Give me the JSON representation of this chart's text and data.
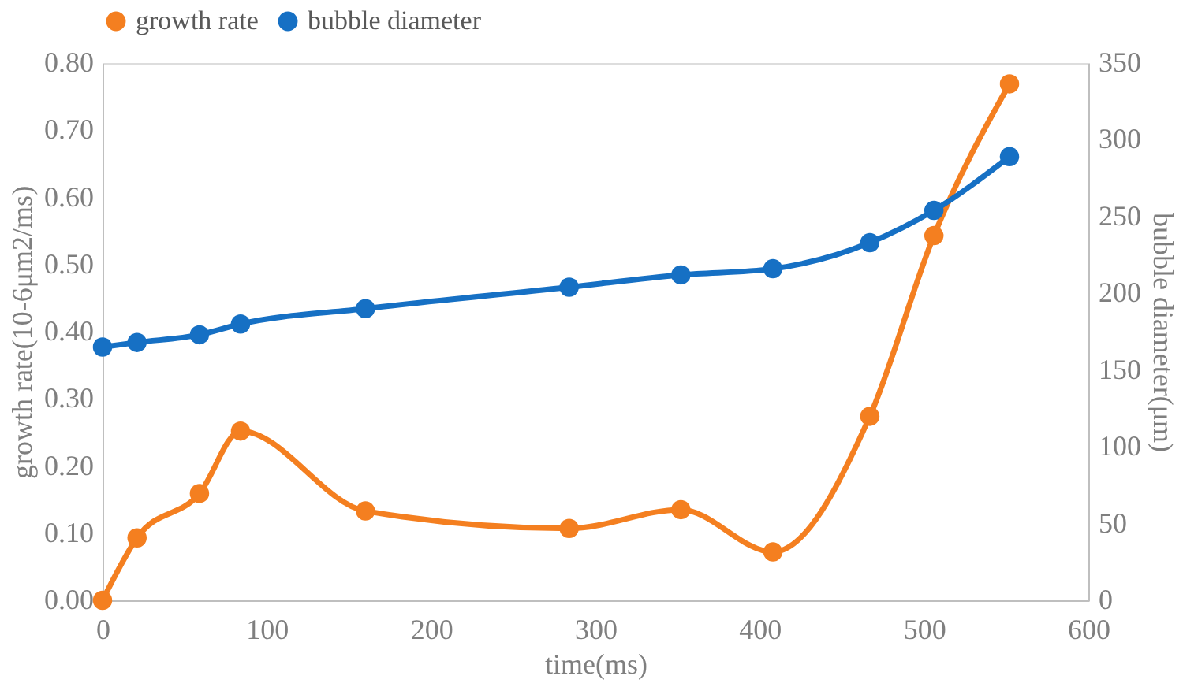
{
  "chart_data": {
    "type": "line",
    "xlabel": "time(ms)",
    "ylabel": "growth rate(10-6μm2/ms)",
    "y2label": "bubble diameter(μm)",
    "x": [
      0,
      21,
      59,
      84,
      160,
      284,
      352,
      408,
      467,
      506,
      552
    ],
    "series": [
      {
        "name": "growth rate",
        "color": "#f47f20",
        "values": [
          0.0,
          0.093,
          0.159,
          0.252,
          0.133,
          0.107,
          0.135,
          0.072,
          0.274,
          0.543,
          0.769
        ]
      },
      {
        "name": "bubble diameter",
        "color": "#1670c4",
        "axis": "y2",
        "values": [
          165,
          168,
          173,
          180,
          190,
          204,
          212,
          216,
          233,
          254,
          289
        ]
      }
    ],
    "xlim": [
      0,
      600
    ],
    "xticks": [
      0,
      100,
      200,
      300,
      400,
      500,
      600
    ],
    "ylim": [
      0,
      0.8
    ],
    "yticks": [
      {
        "value": 0,
        "label": "0.00"
      },
      {
        "value": 0.1,
        "label": "0.10"
      },
      {
        "value": 0.2,
        "label": "0.20"
      },
      {
        "value": 0.3,
        "label": "0.30"
      },
      {
        "value": 0.4,
        "label": "0.40"
      },
      {
        "value": 0.5,
        "label": "0.50"
      },
      {
        "value": 0.6,
        "label": "0.60"
      },
      {
        "value": 0.7,
        "label": "0.70"
      },
      {
        "value": 0.8,
        "label": "0.80"
      }
    ],
    "y2lim": [
      0,
      350
    ],
    "y2ticks": [
      0,
      50,
      100,
      150,
      200,
      250,
      300,
      350
    ],
    "legend": "top",
    "grid": false,
    "marker": "circle",
    "line_style": "solid"
  }
}
